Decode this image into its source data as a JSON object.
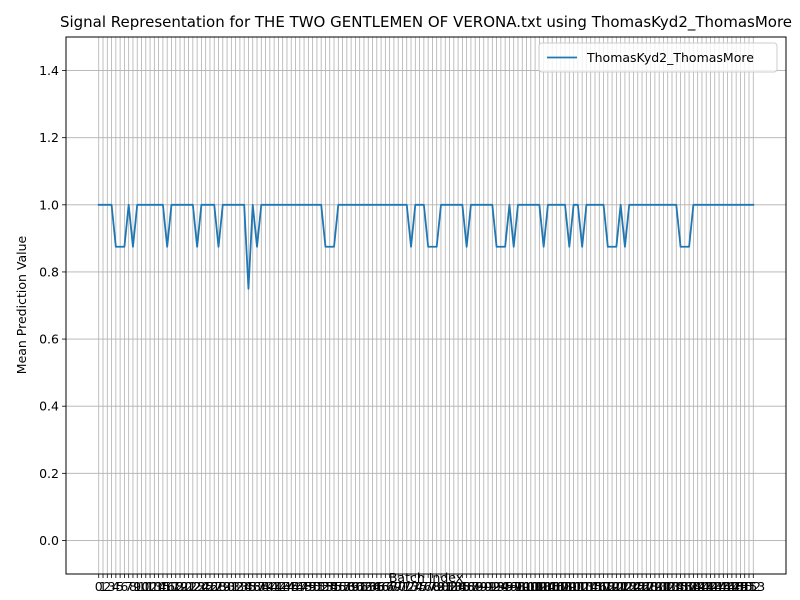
{
  "chart_data": {
    "type": "line",
    "title": "Signal Representation for THE TWO GENTLEMEN OF VERONA.txt using ThomasKyd2_ThomasMore",
    "xlabel": "Batch Index",
    "ylabel": "Mean Prediction Value",
    "ylim": [
      -0.1,
      1.5
    ],
    "y_ticks": [
      0.0,
      0.2,
      0.4,
      0.6,
      0.8,
      1.0,
      1.2,
      1.4
    ],
    "y_tick_labels": [
      "0.0",
      "0.2",
      "0.4",
      "0.6",
      "0.8",
      "1.0",
      "1.2",
      "1.4"
    ],
    "xlim": [
      -7.65,
      160.65
    ],
    "x_ticks_first": 0,
    "x_ticks_last": 153,
    "x_ticks_step": 1,
    "grid": true,
    "legend_placement": "top-right",
    "colors": {
      "series": "#1f77b4",
      "grid": "#b0b0b0",
      "axis": "#000000"
    },
    "series": [
      {
        "name": "ThomasKyd2_ThomasMore",
        "x_start": 0,
        "values": [
          1,
          1,
          1,
          1,
          0.875,
          0.875,
          0.875,
          1,
          0.875,
          1,
          1,
          1,
          1,
          1,
          1,
          1,
          0.875,
          1,
          1,
          1,
          1,
          1,
          1,
          0.875,
          1,
          1,
          1,
          1,
          0.875,
          1,
          1,
          1,
          1,
          1,
          1,
          0.75,
          1,
          0.875,
          1,
          1,
          1,
          1,
          1,
          1,
          1,
          1,
          1,
          1,
          1,
          1,
          1,
          1,
          1,
          0.875,
          0.875,
          0.875,
          1,
          1,
          1,
          1,
          1,
          1,
          1,
          1,
          1,
          1,
          1,
          1,
          1,
          1,
          1,
          1,
          1,
          0.875,
          1,
          1,
          1,
          0.875,
          0.875,
          0.875,
          1,
          1,
          1,
          1,
          1,
          1,
          0.875,
          1,
          1,
          1,
          1,
          1,
          1,
          0.875,
          0.875,
          0.875,
          1,
          0.875,
          1,
          1,
          1,
          1,
          1,
          1,
          0.875,
          1,
          1,
          1,
          1,
          1,
          0.875,
          1,
          1,
          0.875,
          1,
          1,
          1,
          1,
          1,
          0.875,
          0.875,
          0.875,
          1,
          0.875,
          1,
          1,
          1,
          1,
          1,
          1,
          1,
          1,
          1,
          1,
          1,
          1,
          0.875,
          0.875,
          0.875,
          1,
          1,
          1,
          1,
          1,
          1,
          1,
          1,
          1,
          1,
          1,
          1,
          1,
          1,
          1
        ]
      }
    ]
  }
}
